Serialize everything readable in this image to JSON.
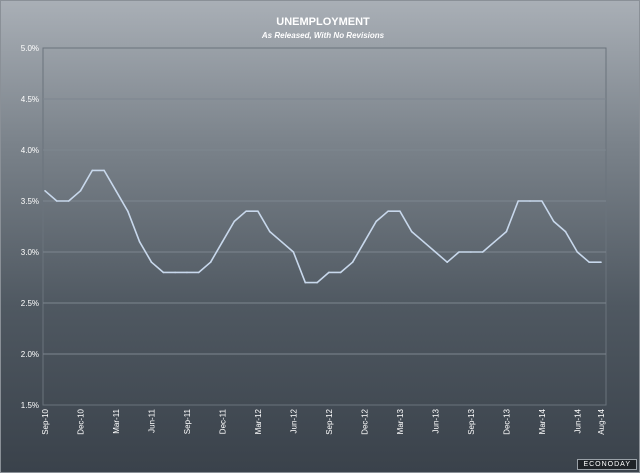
{
  "chart_data": {
    "type": "line",
    "title": "UNEMPLOYMENT",
    "subtitle": "As Released, With No Revisions",
    "xlabel": "",
    "ylabel": "",
    "ylim": [
      1.5,
      5.0
    ],
    "y_ticks": [
      "1.5%",
      "2.0%",
      "2.5%",
      "3.0%",
      "3.5%",
      "4.0%",
      "4.5%",
      "5.0%"
    ],
    "x_tick_labels": [
      "Sep-10",
      "Dec-10",
      "Mar-11",
      "Jun-11",
      "Sep-11",
      "Dec-11",
      "Mar-12",
      "Jun-12",
      "Sep-12",
      "Dec-12",
      "Mar-13",
      "Jun-13",
      "Sep-13",
      "Dec-13",
      "Mar-14",
      "Jun-14",
      "Aug-14"
    ],
    "grid": true,
    "line_color": "#c8d8ec",
    "series": [
      {
        "values": [
          3.6,
          3.5,
          3.5,
          3.6,
          3.8,
          3.8,
          3.6,
          3.4,
          3.1,
          2.9,
          2.8,
          2.8,
          2.8,
          2.8,
          2.9,
          3.1,
          3.3,
          3.4,
          3.4,
          3.2,
          3.1,
          3.0,
          2.7,
          2.7,
          2.8,
          2.8,
          2.9,
          3.1,
          3.3,
          3.4,
          3.4,
          3.2,
          3.1,
          3.0,
          2.9,
          3.0,
          3.0,
          3.0,
          3.1,
          3.2,
          3.5,
          3.5,
          3.5,
          3.3,
          3.2,
          3.0,
          2.9,
          2.9
        ]
      }
    ]
  },
  "watermark": "ECONODAY"
}
